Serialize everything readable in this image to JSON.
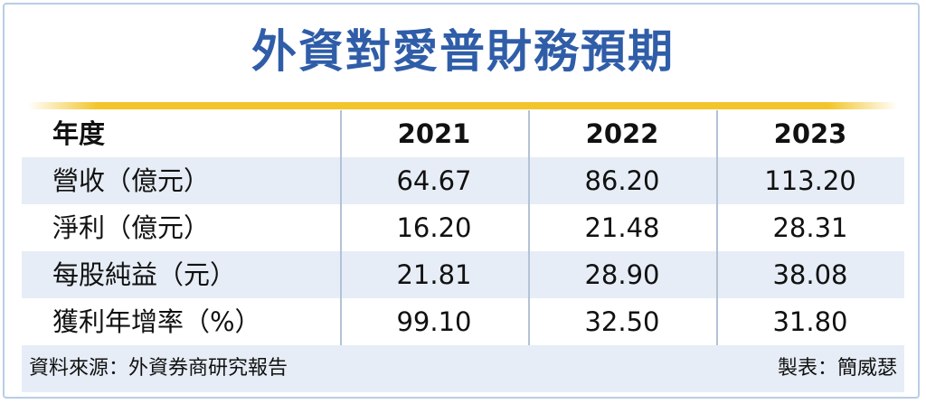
{
  "title": "外資對愛普財務預期",
  "table": {
    "headers": [
      "年度",
      "2021",
      "2022",
      "2023"
    ],
    "rows": [
      {
        "label": "營收（億元）",
        "values": [
          "64.67",
          "86.20",
          "113.20"
        ]
      },
      {
        "label": "淨利（億元）",
        "values": [
          "16.20",
          "21.48",
          "28.31"
        ]
      },
      {
        "label": "每股純益（元）",
        "values": [
          "21.81",
          "28.90",
          "38.08"
        ]
      },
      {
        "label": "獲利年增率（%）",
        "values": [
          "99.10",
          "32.50",
          "31.80"
        ]
      }
    ]
  },
  "footer": {
    "source": "資料來源：外資券商研究報告",
    "credit": "製表：簡威瑟"
  },
  "colors": {
    "title": "#2f5da8",
    "accent_rule": "#f3c52a",
    "row_shade": "#e6edf6",
    "border": "#b9cde6"
  }
}
